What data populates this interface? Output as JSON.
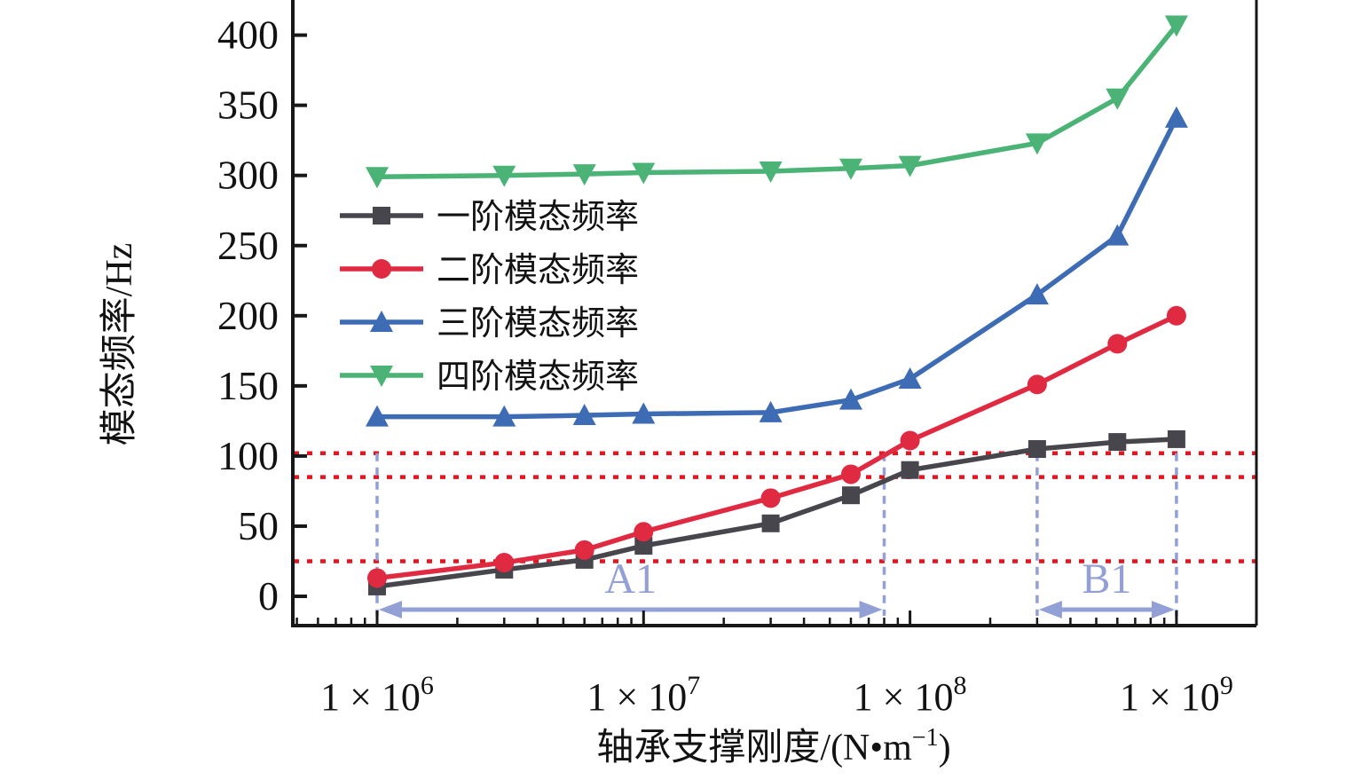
{
  "chart_data": {
    "type": "line",
    "title": "",
    "ylabel": "模态频率/Hz",
    "xlabel_prefix": "轴承支撑刚度/(N•m",
    "xlabel_sup": "−1",
    "xlabel_suffix": ")",
    "x_scale": "log",
    "xlim": [
      480000,
      2050000000
    ],
    "ylim": [
      0,
      425
    ],
    "grid": false,
    "legend_position": "upper-left-inside",
    "x": [
      1000000,
      3000000,
      6000000,
      10000000,
      30000000,
      60000000,
      100000000,
      300000000,
      600000000,
      1000000000
    ],
    "x_ticks": [
      {
        "mantissa": "1 × 10",
        "exp": "6",
        "value": 1000000
      },
      {
        "mantissa": "1 × 10",
        "exp": "7",
        "value": 10000000
      },
      {
        "mantissa": "1 × 10",
        "exp": "8",
        "value": 100000000
      },
      {
        "mantissa": "1 × 10",
        "exp": "9",
        "value": 1000000000
      }
    ],
    "y_ticks": [
      0,
      50,
      100,
      150,
      200,
      250,
      300,
      350,
      400
    ],
    "series": [
      {
        "name": "一阶模态频率",
        "marker": "square",
        "color": "#46464c",
        "values": [
          7,
          19,
          26,
          36,
          52,
          72,
          90,
          105,
          110,
          112
        ]
      },
      {
        "name": "二阶模态频率",
        "marker": "circle",
        "color": "#e02a42",
        "values": [
          13,
          24,
          33,
          46,
          70,
          87,
          111,
          151,
          180,
          200
        ]
      },
      {
        "name": "三阶模态频率",
        "marker": "triangle-up",
        "color": "#3d6cb4",
        "values": [
          128,
          128,
          129,
          130,
          131,
          140,
          155,
          215,
          257,
          341
        ]
      },
      {
        "name": "四阶模态频率",
        "marker": "triangle-down",
        "color": "#4bb375",
        "values": [
          299,
          300,
          301,
          302,
          303,
          305,
          307,
          323,
          355,
          407
        ]
      }
    ],
    "reference_lines_hz": [
      102,
      85,
      25
    ],
    "reference_line_color": "#e5141f",
    "annotations": {
      "color": "#93a0d5",
      "regions": [
        {
          "label": "A1",
          "from_x": 1000000,
          "to_x": 80000000
        },
        {
          "label": "B1",
          "from_x": 300000000,
          "to_x": 1000000000
        }
      ]
    }
  }
}
